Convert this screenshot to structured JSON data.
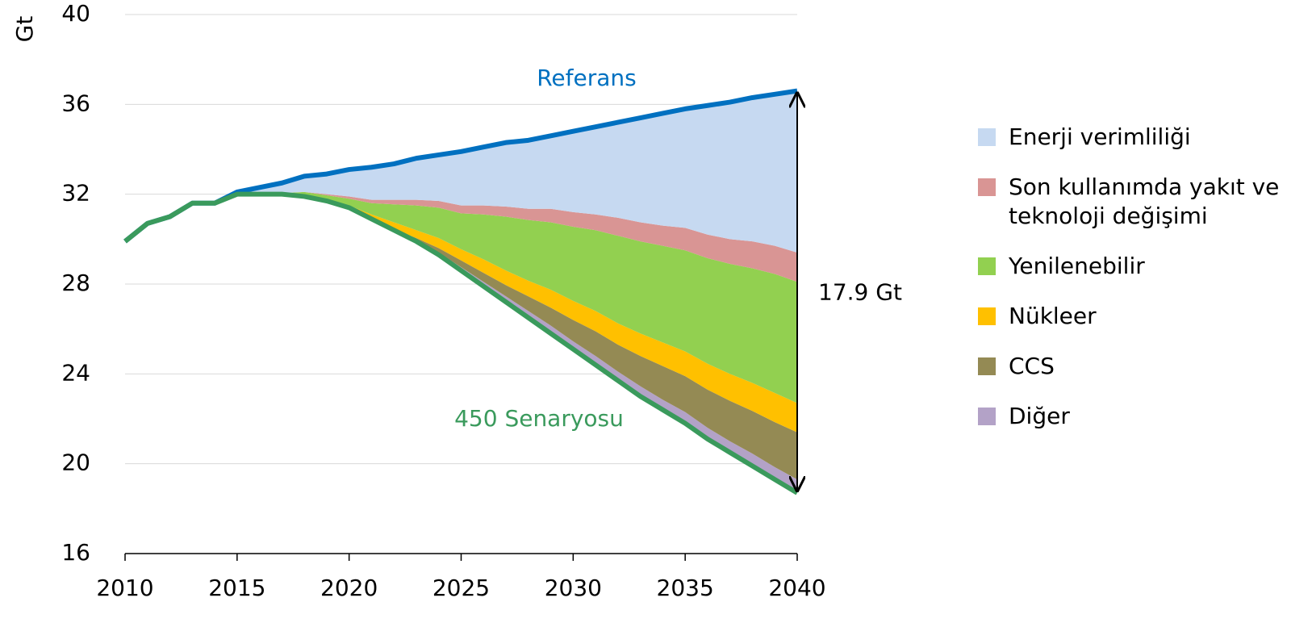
{
  "chart_data": {
    "type": "area",
    "ylabel": "Gt",
    "x": [
      2010,
      2011,
      2012,
      2013,
      2014,
      2015,
      2016,
      2017,
      2018,
      2019,
      2020,
      2021,
      2022,
      2023,
      2024,
      2025,
      2026,
      2027,
      2028,
      2029,
      2030,
      2031,
      2032,
      2033,
      2034,
      2035,
      2036,
      2037,
      2038,
      2039,
      2040
    ],
    "xlim": [
      2010,
      2040
    ],
    "xticks": [
      2010,
      2015,
      2020,
      2025,
      2030,
      2035,
      2040
    ],
    "ylim": [
      16,
      40
    ],
    "yticks": [
      16,
      20,
      24,
      28,
      32,
      36,
      40
    ],
    "grid": true,
    "legend": "right",
    "reference": {
      "name": "Referans",
      "color": "#0070c0",
      "values": [
        29.9,
        30.7,
        31.0,
        31.6,
        31.6,
        32.1,
        32.3,
        32.5,
        32.8,
        32.9,
        33.1,
        33.2,
        33.35,
        33.6,
        33.75,
        33.9,
        34.1,
        34.3,
        34.4,
        34.6,
        34.8,
        35.0,
        35.2,
        35.4,
        35.6,
        35.8,
        35.95,
        36.1,
        36.3,
        36.45,
        36.6
      ]
    },
    "base": {
      "name": "450 Senaryosu",
      "color": "#3a9a5c",
      "values": [
        29.9,
        30.7,
        31.0,
        31.6,
        31.6,
        32.0,
        32.0,
        32.0,
        31.9,
        31.7,
        31.4,
        30.9,
        30.4,
        29.9,
        29.3,
        28.6,
        27.9,
        27.2,
        26.5,
        25.8,
        25.1,
        24.4,
        23.7,
        23.0,
        22.4,
        21.8,
        21.1,
        20.5,
        19.9,
        19.3,
        18.7
      ]
    },
    "series": [
      {
        "name": "Enerji verimliliği",
        "color": "#c6d9f1",
        "values": [
          0,
          0,
          0,
          0,
          0,
          0.1,
          0.3,
          0.45,
          0.7,
          0.9,
          1.2,
          1.45,
          1.6,
          1.85,
          2.05,
          2.4,
          2.6,
          2.85,
          3.05,
          3.25,
          3.6,
          3.9,
          4.25,
          4.65,
          5.0,
          5.3,
          5.75,
          6.1,
          6.4,
          6.75,
          7.2
        ]
      },
      {
        "name": "Son kullanımda yakıt ve teknoloji değişimi",
        "color": "#d99594",
        "values": [
          0,
          0,
          0,
          0,
          0,
          0,
          0,
          0,
          0,
          0.05,
          0.1,
          0.15,
          0.2,
          0.25,
          0.3,
          0.35,
          0.4,
          0.45,
          0.5,
          0.6,
          0.65,
          0.7,
          0.8,
          0.85,
          0.9,
          1.0,
          1.05,
          1.1,
          1.2,
          1.25,
          1.3
        ]
      },
      {
        "name": "Yenilenebilir",
        "color": "#92d050",
        "values": [
          0,
          0,
          0,
          0,
          0,
          0,
          0,
          0.05,
          0.2,
          0.2,
          0.3,
          0.5,
          0.8,
          1.1,
          1.35,
          1.6,
          2.0,
          2.4,
          2.7,
          3.0,
          3.3,
          3.6,
          3.9,
          4.1,
          4.3,
          4.5,
          4.7,
          4.9,
          5.1,
          5.3,
          5.4
        ]
      },
      {
        "name": "Nükleer",
        "color": "#ffc000",
        "values": [
          0,
          0,
          0,
          0,
          0,
          0,
          0,
          0,
          0,
          0.05,
          0.1,
          0.2,
          0.3,
          0.35,
          0.45,
          0.5,
          0.6,
          0.65,
          0.7,
          0.8,
          0.85,
          0.9,
          0.95,
          1.0,
          1.05,
          1.1,
          1.15,
          1.2,
          1.25,
          1.3,
          1.3
        ]
      },
      {
        "name": "CCS",
        "color": "#948a54",
        "values": [
          0,
          0,
          0,
          0,
          0,
          0,
          0,
          0,
          0,
          0,
          0,
          0,
          0.05,
          0.1,
          0.2,
          0.3,
          0.4,
          0.5,
          0.65,
          0.8,
          0.95,
          1.1,
          1.2,
          1.35,
          1.5,
          1.6,
          1.7,
          1.8,
          1.9,
          2.0,
          2.1
        ]
      },
      {
        "name": "Diğer",
        "color": "#b3a2c7",
        "values": [
          0,
          0,
          0,
          0,
          0,
          0,
          0,
          0,
          0,
          0,
          0,
          0,
          0,
          0.05,
          0.1,
          0.15,
          0.2,
          0.25,
          0.3,
          0.35,
          0.35,
          0.4,
          0.4,
          0.45,
          0.45,
          0.5,
          0.5,
          0.5,
          0.55,
          0.55,
          0.6
        ]
      }
    ],
    "annotation": "17.9 Gt"
  }
}
